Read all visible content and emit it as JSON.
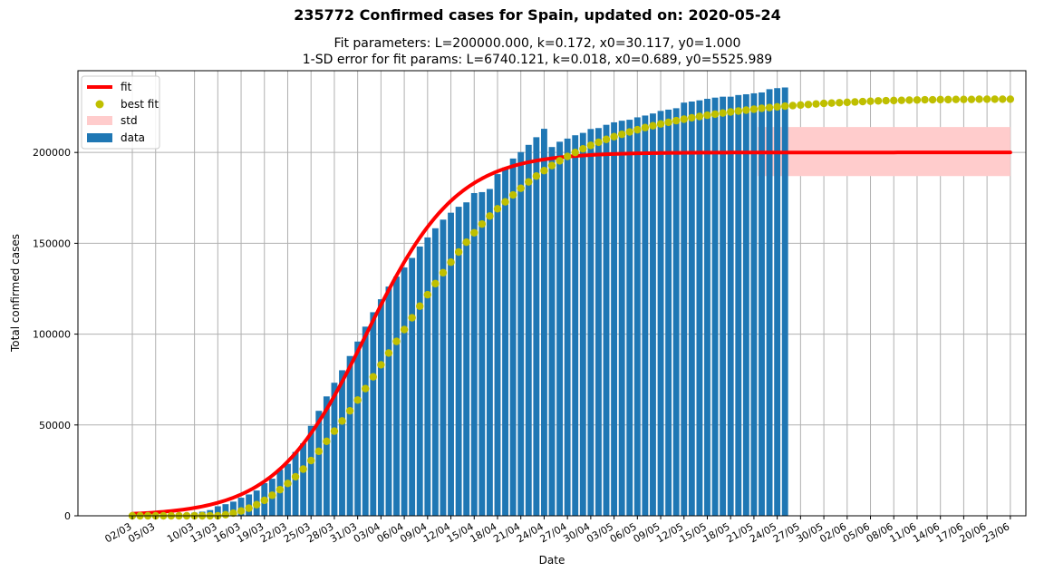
{
  "chart_data": {
    "type": "bar",
    "title": "235772 Confirmed cases for Spain, updated on: 2020-05-24",
    "subtitle_lines": [
      "Fit parameters: L=200000.000, k=0.172, x0=30.117, y0=1.000",
      "1-SD error for fit params: L=6740.121, k=0.018, x0=0.689, y0=5525.989"
    ],
    "xlabel": "Date",
    "ylabel": "Total confirmed cases",
    "ylim": [
      0,
      245000
    ],
    "xlim": [
      -7,
      115
    ],
    "grid": true,
    "legend_position": "top-left",
    "y_ticks": [
      0,
      50000,
      100000,
      150000,
      200000
    ],
    "x_tick_positions": [
      0,
      3,
      8,
      11,
      14,
      17,
      20,
      23,
      26,
      29,
      32,
      35,
      38,
      41,
      44,
      47,
      50,
      53,
      56,
      59,
      62,
      65,
      68,
      71,
      74,
      77,
      80,
      83,
      86,
      89,
      92,
      95,
      98,
      101,
      104,
      107,
      110,
      113
    ],
    "x_tick_labels": [
      "02/03",
      "05/03",
      "10/03",
      "13/03",
      "16/03",
      "19/03",
      "22/03",
      "25/03",
      "28/03",
      "31/03",
      "03/04",
      "06/04",
      "09/04",
      "12/04",
      "15/04",
      "18/04",
      "21/04",
      "24/04",
      "27/04",
      "30/04",
      "03/05",
      "06/05",
      "09/05",
      "12/05",
      "15/05",
      "18/05",
      "21/05",
      "24/05",
      "27/05",
      "30/05",
      "02/06",
      "05/06",
      "08/06",
      "11/06",
      "14/06",
      "17/06",
      "20/06",
      "23/06"
    ],
    "legend": [
      {
        "key": "fit",
        "label": "fit"
      },
      {
        "key": "best_fit",
        "label": "best fit"
      },
      {
        "key": "std",
        "label": "std"
      },
      {
        "key": "data",
        "label": "data"
      }
    ],
    "colors": {
      "data": "#1f77b4",
      "fit": "#ff0000",
      "best_fit": "#bfbf00",
      "std": "#ffcccc"
    },
    "fit": {
      "L": 200000,
      "k": 0.172,
      "x0": 30.117,
      "y0": 1,
      "x_start": 0,
      "x_end": 113
    },
    "std_band": {
      "x_start": 80.5,
      "x_end": 113,
      "y_low": 187000,
      "y_high": 214000
    },
    "data": {
      "x_start": 0,
      "values": [
        114,
        151,
        198,
        257,
        374,
        500,
        673,
        1073,
        1695,
        2277,
        3146,
        5232,
        6391,
        7798,
        9942,
        11748,
        13910,
        17963,
        20410,
        25374,
        28603,
        35136,
        39885,
        49515,
        57786,
        65719,
        73235,
        80110,
        87956,
        95923,
        104118,
        112065,
        119199,
        126168,
        131646,
        136675,
        141942,
        148220,
        153222,
        158273,
        163027,
        166831,
        170099,
        172541,
        177644,
        178171,
        179903,
        188068,
        191726,
        196664,
        200210,
        204178,
        208389,
        213024,
        202990,
        205905,
        207634,
        209465,
        210773,
        212917,
        213435,
        215216,
        216582,
        217466,
        218011,
        219329,
        220325,
        221447,
        222857,
        223578,
        224350,
        227436,
        228030,
        228691,
        229540,
        230183,
        230698,
        230698,
        231606,
        232037,
        232555,
        233037,
        234824,
        235400,
        235772
      ]
    },
    "best_fit_points": {
      "x_start": 0,
      "values": [
        0,
        0,
        0,
        0,
        0,
        0,
        0,
        0,
        0,
        0,
        0,
        0,
        600,
        1460,
        2640,
        4180,
        6120,
        8500,
        11300,
        14400,
        17800,
        21500,
        25700,
        30400,
        35500,
        41000,
        46600,
        52200,
        57800,
        63700,
        70000,
        76500,
        83100,
        89600,
        96000,
        102500,
        109000,
        115400,
        121700,
        127800,
        133800,
        139600,
        145200,
        150600,
        155800,
        160600,
        165000,
        169000,
        172800,
        176600,
        180300,
        183800,
        187000,
        190000,
        192800,
        195400,
        197800,
        200000,
        202000,
        203900,
        205600,
        207200,
        208700,
        210000,
        211300,
        212500,
        213700,
        214700,
        215700,
        216600,
        217500,
        218300,
        219100,
        219800,
        220500,
        221100,
        221700,
        222300,
        222800,
        223300,
        223800,
        224300,
        224700,
        225100,
        225500,
        225800,
        226100,
        226400,
        226700,
        227000,
        227200,
        227400,
        227600,
        227800,
        228000,
        228200,
        228400,
        228500,
        228600,
        228700,
        228800,
        228900,
        229000,
        229000,
        229100,
        229100,
        229200,
        229200,
        229200,
        229300,
        229300,
        229300,
        229300,
        229300
      ]
    }
  }
}
